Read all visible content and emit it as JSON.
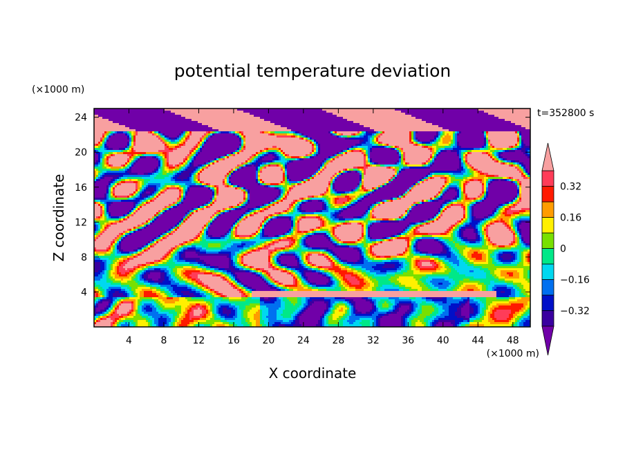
{
  "chart_data": {
    "type": "heatmap",
    "title": "potential temperature deviation",
    "xlabel": "X coordinate",
    "ylabel": "Z coordinate",
    "x_unit": "(×1000 m)",
    "z_unit": "(×1000 m)",
    "time_label": "t=352800 s",
    "xlim": [
      0,
      50
    ],
    "ylim": [
      0,
      25
    ],
    "x_ticks": [
      4,
      8,
      12,
      16,
      20,
      24,
      28,
      32,
      36,
      40,
      44,
      48
    ],
    "y_ticks": [
      4,
      8,
      12,
      16,
      20,
      24
    ],
    "legend_placement": "right",
    "colorbar": {
      "levels": [
        -0.4,
        -0.32,
        -0.24,
        -0.16,
        -0.08,
        0,
        0.08,
        0.16,
        0.24,
        0.32,
        0.4
      ],
      "labeled_levels": [
        "0.32",
        "0.16",
        "0",
        "−0.16",
        "−0.32"
      ],
      "labeled_values": [
        0.32,
        0.16,
        0,
        -0.16,
        -0.32
      ],
      "colors": [
        "#7000a8",
        "#3a00a0",
        "#0010c8",
        "#0070f0",
        "#00d8f0",
        "#00e888",
        "#78e000",
        "#fff000",
        "#ff9c00",
        "#ff1a00",
        "#ff3c58",
        "#f8a0a0"
      ],
      "extend": "both"
    }
  }
}
